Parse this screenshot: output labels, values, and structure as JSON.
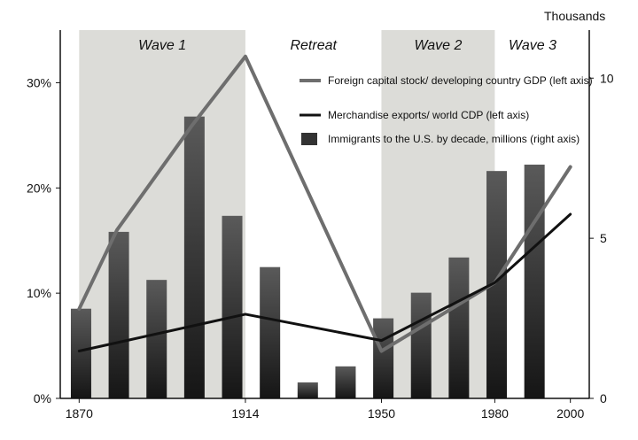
{
  "chart_data": {
    "type": "bar",
    "y_right_unit": "Thousands",
    "x_ticks": [
      "1870",
      "1914",
      "1950",
      "1980",
      "2000"
    ],
    "y_left_ticks": [
      "0%",
      "10%",
      "20%",
      "30%"
    ],
    "y_right_ticks": [
      "0",
      "5",
      "10"
    ],
    "y_left_range": [
      0,
      35
    ],
    "y_right_range": [
      0,
      11.5
    ],
    "periods": [
      {
        "label": "Wave 1",
        "from": 1870,
        "to": 1914,
        "shaded": true
      },
      {
        "label": "Retreat",
        "from": 1914,
        "to": 1950,
        "shaded": false
      },
      {
        "label": "Wave 2",
        "from": 1950,
        "to": 1980,
        "shaded": true
      },
      {
        "label": "Wave 3",
        "from": 1980,
        "to": 2000,
        "shaded": false
      }
    ],
    "bars": {
      "name": "Immigrants to the U.S. by decade, millions (right axis)",
      "x": [
        1870,
        1880,
        1890,
        1900,
        1910,
        1920,
        1930,
        1940,
        1950,
        1960,
        1970,
        1980,
        1990
      ],
      "values": [
        2.8,
        5.2,
        3.7,
        8.8,
        5.7,
        4.1,
        0.5,
        1.0,
        2.5,
        3.3,
        4.4,
        7.1,
        7.3
      ]
    },
    "series": [
      {
        "name": "Foreign capital stock/ developing country GDP (left axis)",
        "color": "#6e6e6e",
        "x": [
          1870,
          1880,
          1900,
          1914,
          1950,
          1980,
          2000
        ],
        "values": [
          8.5,
          16,
          26,
          32.5,
          4.5,
          11,
          22
        ]
      },
      {
        "name": "Merchandise exports/ world CDP (left axis)",
        "color": "#111111",
        "x": [
          1870,
          1914,
          1950,
          1980,
          2000
        ],
        "values": [
          4.5,
          8,
          5.5,
          11,
          17.5
        ]
      }
    ],
    "grid": false,
    "legend_position": "top-right"
  }
}
